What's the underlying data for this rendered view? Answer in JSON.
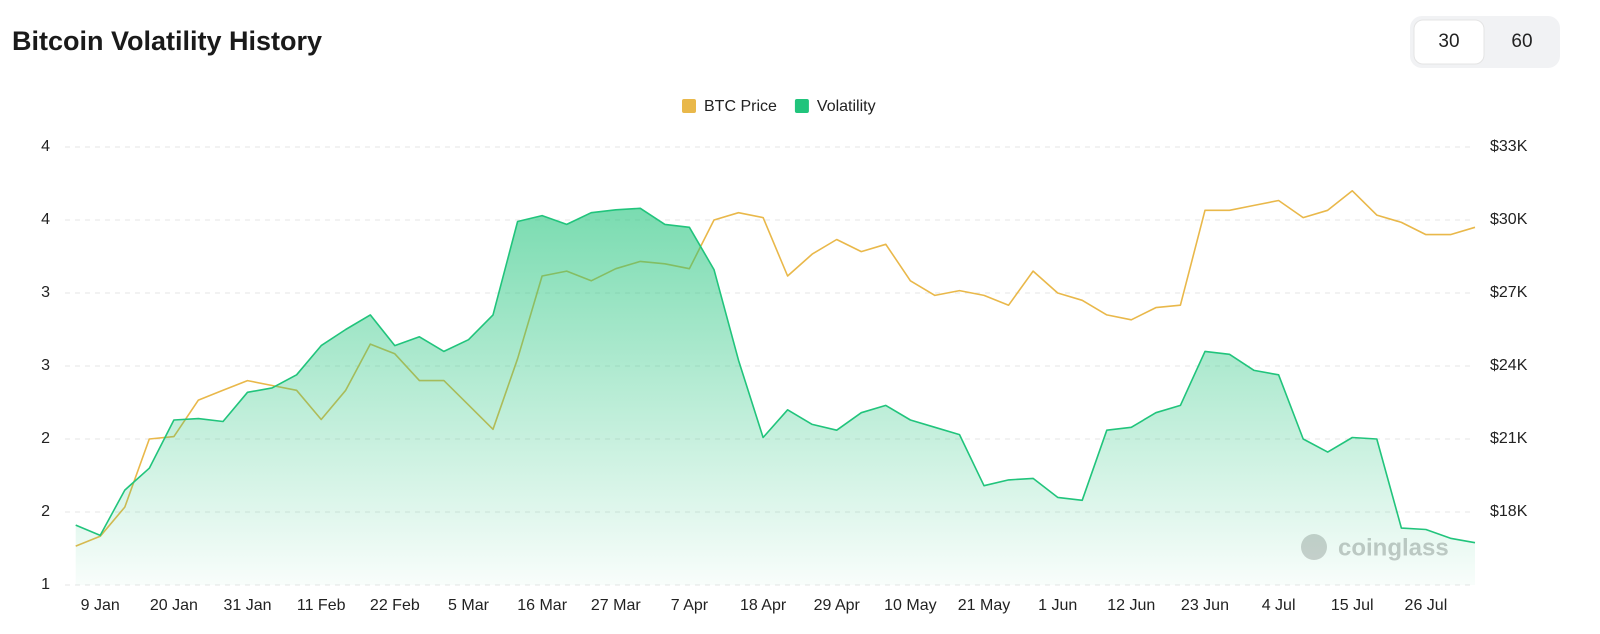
{
  "chart_data": {
    "type": "area_line",
    "title": "Bitcoin Volatility History",
    "controls": [
      "30",
      "60"
    ],
    "selected_control": 0,
    "watermark": "coinglass",
    "categories": [
      null,
      "9 Jan",
      null,
      null,
      "20 Jan",
      null,
      null,
      "31 Jan",
      null,
      null,
      "11 Feb",
      null,
      null,
      "22 Feb",
      null,
      null,
      "5 Mar",
      null,
      null,
      "16 Mar",
      null,
      null,
      "27 Mar",
      null,
      null,
      "7 Apr",
      null,
      null,
      "18 Apr",
      null,
      null,
      "29 Apr",
      null,
      null,
      "10 May",
      null,
      null,
      "21 May",
      null,
      null,
      "1 Jun",
      null,
      null,
      "12 Jun",
      null,
      null,
      "23 Jun",
      null,
      null,
      "4 Jul",
      null,
      null,
      "15 Jul",
      null,
      null,
      "26 Jul",
      null,
      null
    ],
    "series": [
      {
        "name": "BTC Price",
        "color": "#e9b84a",
        "axis": "y2",
        "values": [
          16600,
          17000,
          18200,
          21000,
          21100,
          22600,
          23000,
          23400,
          23200,
          23000,
          21800,
          23000,
          24900,
          24500,
          23400,
          23400,
          22400,
          21400,
          24300,
          27700,
          27900,
          27500,
          28000,
          28300,
          28200,
          28000,
          30000,
          30300,
          30100,
          27700,
          28600,
          29200,
          28700,
          29000,
          27500,
          26900,
          27100,
          26900,
          26500,
          27900,
          27000,
          26700,
          26100,
          25900,
          26400,
          26500,
          30400,
          30400,
          30600,
          30800,
          30100,
          30400,
          31200,
          30200,
          29900,
          29400,
          29400,
          29700
        ]
      },
      {
        "name": "Volatility",
        "color": "#21c47c",
        "values": [
          1.41,
          1.34,
          1.65,
          1.8,
          2.13,
          2.14,
          2.12,
          2.32,
          2.35,
          2.44,
          2.64,
          2.75,
          2.85,
          2.64,
          2.7,
          2.6,
          2.68,
          2.85,
          3.49,
          3.53,
          3.47,
          3.55,
          3.57,
          3.58,
          3.47,
          3.45,
          3.16,
          2.54,
          2.01,
          2.2,
          2.1,
          2.06,
          2.18,
          2.23,
          2.13,
          2.08,
          2.03,
          1.68,
          1.72,
          1.73,
          1.6,
          1.58,
          2.06,
          2.08,
          2.18,
          2.23,
          2.6,
          2.58,
          2.47,
          2.44,
          2.0,
          1.91,
          2.01,
          2.0,
          1.39,
          1.38,
          1.32,
          1.29
        ]
      }
    ],
    "ylim": [
      1,
      4
    ],
    "yticks": [
      4,
      {
        "value": 3.5,
        "label": "4"
      },
      3,
      {
        "value": 2.5,
        "label": "3"
      },
      2,
      {
        "value": 1.5,
        "label": "2"
      },
      1
    ],
    "y2lim": [
      15000,
      33000
    ],
    "y2ticks": [
      {
        "value": 33000,
        "label": "$33K"
      },
      {
        "value": 30000,
        "label": "$30K"
      },
      {
        "value": 27000,
        "label": "$27K"
      },
      {
        "value": 24000,
        "label": "$24K"
      },
      {
        "value": 21000,
        "label": "$21K"
      },
      {
        "value": 18000,
        "label": "$18K"
      }
    ],
    "grid": true,
    "legend": "top"
  }
}
